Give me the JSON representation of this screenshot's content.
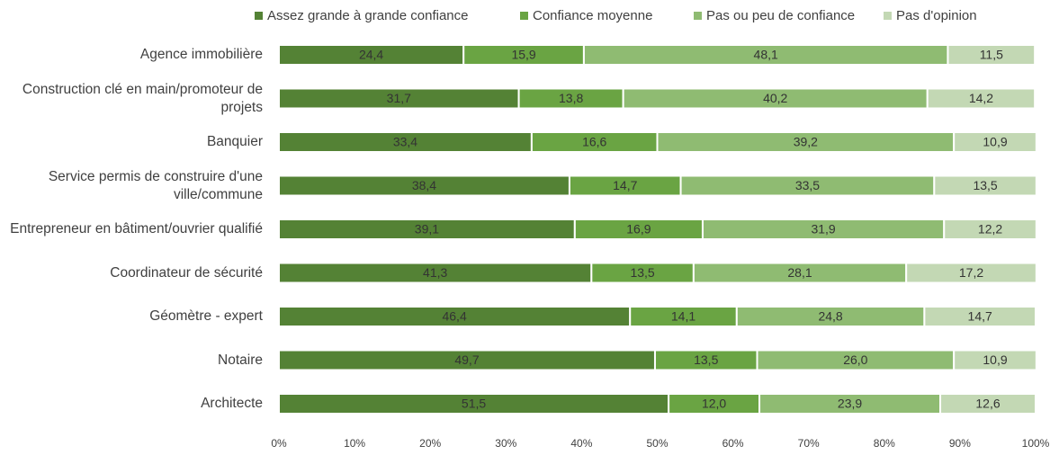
{
  "chart_data": {
    "type": "stacked-barh",
    "categories": [
      "Agence immobilière",
      "Construction clé en main/promoteur de projets",
      "Banquier",
      "Service permis de construire d'une ville/commune",
      "Entrepreneur en bâtiment/ouvrier qualifié",
      "Coordinateur de sécurité",
      "Géomètre - expert",
      "Notaire",
      "Architecte"
    ],
    "series": [
      {
        "name": "Assez grande à grande confiance",
        "color": "#548235",
        "values": [
          24.4,
          31.7,
          33.4,
          38.4,
          39.1,
          41.3,
          46.4,
          49.7,
          51.5
        ],
        "value_labels": [
          "24,4",
          "31,7",
          "33,4",
          "38,4",
          "39,1",
          "41,3",
          "46,4",
          "49,7",
          "51,5"
        ]
      },
      {
        "name": "Confiance moyenne",
        "color": "#6aa443",
        "values": [
          15.9,
          13.8,
          16.6,
          14.7,
          16.9,
          13.5,
          14.1,
          13.5,
          12.0
        ],
        "value_labels": [
          "15,9",
          "13,8",
          "16,6",
          "14,7",
          "16,9",
          "13,5",
          "14,1",
          "13,5",
          "12,0"
        ]
      },
      {
        "name": "Pas ou peu de confiance",
        "color": "#8fbb72",
        "values": [
          48.1,
          40.2,
          39.2,
          33.5,
          31.9,
          28.1,
          24.8,
          26.0,
          23.9
        ],
        "value_labels": [
          "48,1",
          "40,2",
          "39,2",
          "33,5",
          "31,9",
          "28,1",
          "24,8",
          "26,0",
          "23,9"
        ]
      },
      {
        "name": "Pas d'opinion",
        "color": "#c3d8b4",
        "values": [
          11.5,
          14.2,
          10.9,
          13.5,
          12.2,
          17.2,
          14.7,
          10.9,
          12.6
        ],
        "value_labels": [
          "11,5",
          "14,2",
          "10,9",
          "13,5",
          "12,2",
          "17,2",
          "14,7",
          "10,9",
          "12,6"
        ]
      }
    ],
    "xlim": [
      0,
      100
    ],
    "xticks": [
      {
        "value": 0,
        "label": "0%"
      },
      {
        "value": 10,
        "label": "10%"
      },
      {
        "value": 20,
        "label": "20%"
      },
      {
        "value": 30,
        "label": "30%"
      },
      {
        "value": 40,
        "label": "40%"
      },
      {
        "value": 50,
        "label": "50%"
      },
      {
        "value": 60,
        "label": "60%"
      },
      {
        "value": 70,
        "label": "70%"
      },
      {
        "value": 80,
        "label": "80%"
      },
      {
        "value": 90,
        "label": "90%"
      },
      {
        "value": 100,
        "label": "100%"
      }
    ],
    "legend": "top"
  }
}
